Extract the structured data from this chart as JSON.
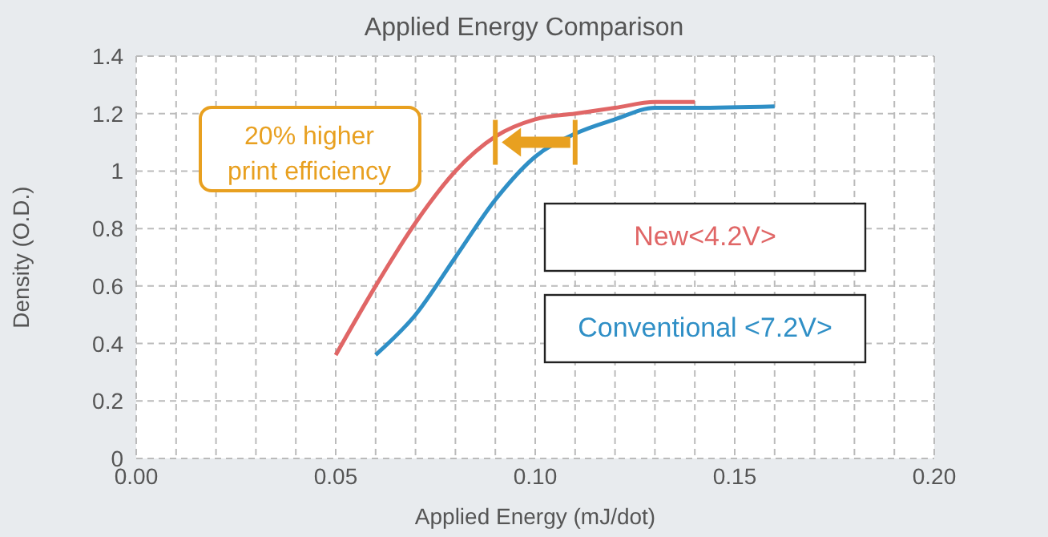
{
  "chart_data": {
    "type": "line",
    "title": "Applied Energy Comparison",
    "xlabel": "Applied Energy (mJ/dot)",
    "ylabel": "Density (O.D.)",
    "xlim": [
      0,
      0.2
    ],
    "ylim": [
      0,
      1.4
    ],
    "xticks": [
      {
        "value": 0,
        "label": "0.00"
      },
      {
        "value": 0.01,
        "label": null
      },
      {
        "value": 0.02,
        "label": null
      },
      {
        "value": 0.03,
        "label": null
      },
      {
        "value": 0.04,
        "label": null
      },
      {
        "value": 0.05,
        "label": "0.05"
      },
      {
        "value": 0.06,
        "label": null
      },
      {
        "value": 0.07,
        "label": null
      },
      {
        "value": 0.08,
        "label": null
      },
      {
        "value": 0.09,
        "label": null
      },
      {
        "value": 0.1,
        "label": "0.10"
      },
      {
        "value": 0.11,
        "label": null
      },
      {
        "value": 0.12,
        "label": null
      },
      {
        "value": 0.13,
        "label": null
      },
      {
        "value": 0.14,
        "label": null
      },
      {
        "value": 0.15,
        "label": "0.15"
      },
      {
        "value": 0.16,
        "label": null
      },
      {
        "value": 0.17,
        "label": null
      },
      {
        "value": 0.18,
        "label": null
      },
      {
        "value": 0.19,
        "label": null
      },
      {
        "value": 0.2,
        "label": "0.20"
      }
    ],
    "yticks": [
      0,
      0.2,
      0.4,
      0.6,
      0.8,
      1,
      1.2,
      1.4
    ],
    "grid": true,
    "legend": "right",
    "line_style": "solid",
    "marker": "none",
    "annotations": [
      "20% higher print efficiency"
    ],
    "series": [
      {
        "name": "New<4.2V>",
        "color": "#e06666",
        "x": [
          0.05,
          0.06,
          0.07,
          0.08,
          0.09,
          0.1,
          0.11,
          0.12,
          0.13,
          0.14
        ],
        "values": [
          0.36,
          0.6,
          0.82,
          1.0,
          1.12,
          1.18,
          1.2,
          1.22,
          1.24,
          1.24
        ]
      },
      {
        "name": "Conventional <7.2V>",
        "color": "#2f8fc6",
        "x": [
          0.06,
          0.07,
          0.08,
          0.09,
          0.1,
          0.11,
          0.12,
          0.13,
          0.14,
          0.16
        ],
        "values": [
          0.36,
          0.5,
          0.7,
          0.9,
          1.05,
          1.13,
          1.18,
          1.22,
          1.22,
          1.225
        ]
      }
    ]
  }
}
